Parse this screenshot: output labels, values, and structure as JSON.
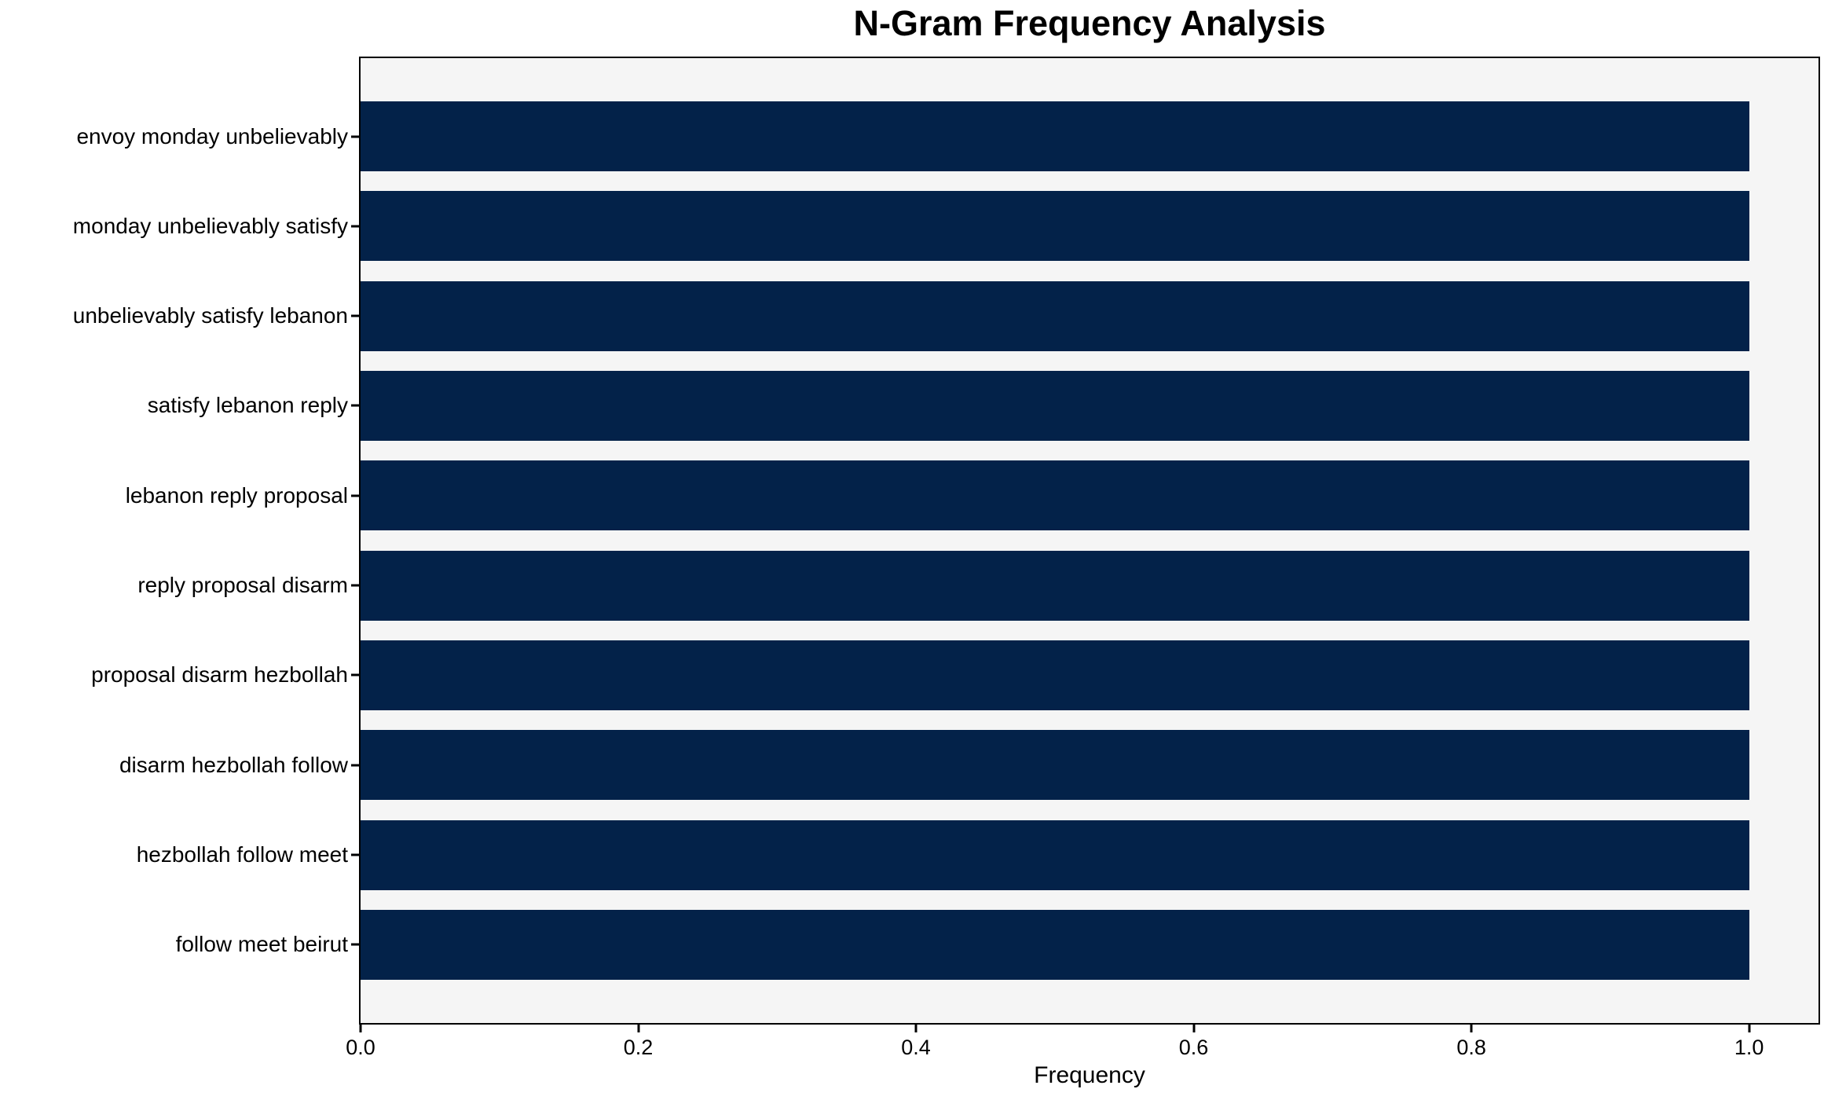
{
  "colors": {
    "bar_fill": "#032249",
    "plot_background": "#f5f5f5",
    "figure_background": "#ffffff",
    "axis_line": "#000000",
    "text": "#000000"
  },
  "chart_data": {
    "type": "bar",
    "orientation": "horizontal",
    "title": "N-Gram Frequency Analysis",
    "xlabel": "Frequency",
    "ylabel": "",
    "categories": [
      "envoy monday unbelievably",
      "monday unbelievably satisfy",
      "unbelievably satisfy lebanon",
      "satisfy lebanon reply",
      "lebanon reply proposal",
      "reply proposal disarm",
      "proposal disarm hezbollah",
      "disarm hezbollah follow",
      "hezbollah follow meet",
      "follow meet beirut"
    ],
    "values": [
      1.0,
      1.0,
      1.0,
      1.0,
      1.0,
      1.0,
      1.0,
      1.0,
      1.0,
      1.0
    ],
    "xlim": [
      0,
      1.05
    ],
    "x_ticks": [
      0.0,
      0.2,
      0.4,
      0.6,
      0.8,
      1.0
    ],
    "x_tick_labels": [
      "0.0",
      "0.2",
      "0.4",
      "0.6",
      "0.8",
      "1.0"
    ],
    "grid": false,
    "legend": null,
    "bar_height_fraction": 0.8
  }
}
